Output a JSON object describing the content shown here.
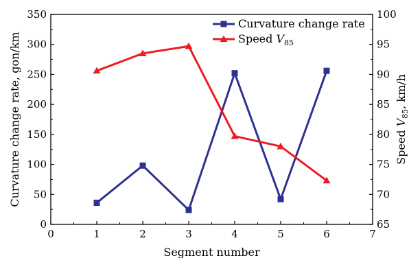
{
  "chart_data": {
    "type": "line",
    "xlabel": "Segment number",
    "ylabel_left": "Curvature change rate, gon/km",
    "ylabel_right_prefix": "Speed ",
    "ylabel_right_var": "V",
    "ylabel_right_sub": "85",
    "ylabel_right_suffix": ", km/h",
    "xlim": [
      0,
      7
    ],
    "ylim_left": [
      0,
      350
    ],
    "ylim_right": [
      65,
      100
    ],
    "x_ticks": [
      "0",
      "1",
      "2",
      "3",
      "4",
      "5",
      "6",
      "7"
    ],
    "y_left_ticks": [
      "0",
      "50",
      "100",
      "150",
      "200",
      "250",
      "300",
      "350"
    ],
    "y_right_ticks": [
      "65",
      "70",
      "75",
      "80",
      "85",
      "90",
      "95",
      "100"
    ],
    "legend_position": "top-right",
    "series": [
      {
        "name": "Curvature change rate",
        "axis": "left",
        "marker": "square",
        "color": "#2e3192",
        "x": [
          1,
          2,
          3,
          4,
          5,
          6
        ],
        "values": [
          36,
          98,
          24,
          252,
          42,
          256
        ]
      },
      {
        "name_prefix": "Speed ",
        "name_var": "V",
        "name_sub": "85",
        "axis": "right",
        "marker": "triangle",
        "color": "#ed1c24",
        "x": [
          1,
          2,
          3,
          4,
          5,
          6
        ],
        "values": [
          90.6,
          93.5,
          94.7,
          79.7,
          78.0,
          72.3
        ]
      }
    ]
  }
}
